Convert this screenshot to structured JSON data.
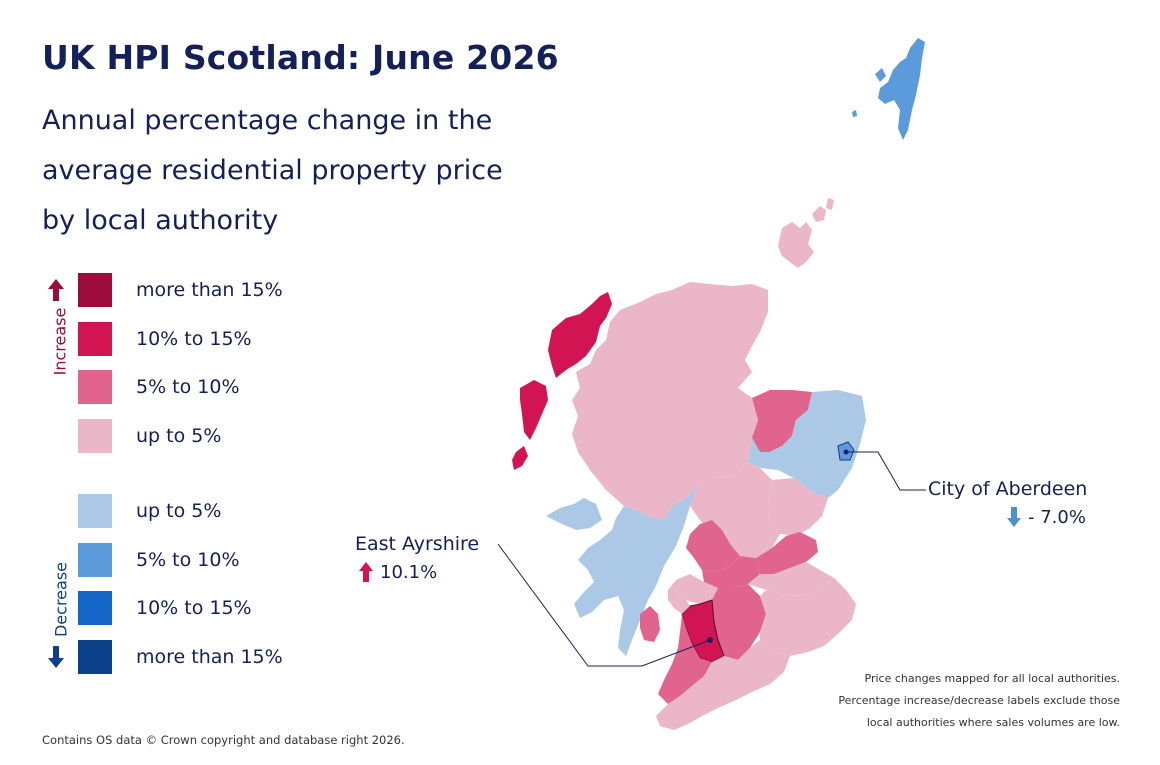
{
  "title": "UK HPI Scotland: June 2026",
  "subtitle": "Annual percentage change in the average residential property price by local authority",
  "legend": {
    "increase_label": "Increase",
    "decrease_label": "Decrease",
    "increase_items": [
      {
        "label": "more than 15%",
        "color": "#9b0b3c"
      },
      {
        "label": "10% to 15%",
        "color": "#d31452"
      },
      {
        "label": "5% to 10%",
        "color": "#e0648d"
      },
      {
        "label": "up to 5%",
        "color": "#ebb6c7"
      }
    ],
    "decrease_items": [
      {
        "label": "up to 5%",
        "color": "#abc8e7"
      },
      {
        "label": "5% to 10%",
        "color": "#5b9bdc"
      },
      {
        "label": "10% to 15%",
        "color": "#1466c9"
      },
      {
        "label": "more than 15%",
        "color": "#0b418a"
      }
    ],
    "increase_arrow_color": "#9b0b3c",
    "decrease_arrow_color": "#0b418a"
  },
  "callouts": {
    "aberdeen": {
      "name": "City of Aberdeen",
      "value": "- 7.0%",
      "direction": "down",
      "arrow_color": "#4a90d9"
    },
    "ayrshire": {
      "name": "East Ayrshire",
      "value": "10.1%",
      "direction": "up",
      "arrow_color": "#d31452"
    }
  },
  "footnote": "Price changes mapped for all local authorities. Percentage increase/decrease labels exclude those local authorities where sales volumes are low.",
  "copyright": "Contains OS data © Crown copyright and database right 2026."
}
